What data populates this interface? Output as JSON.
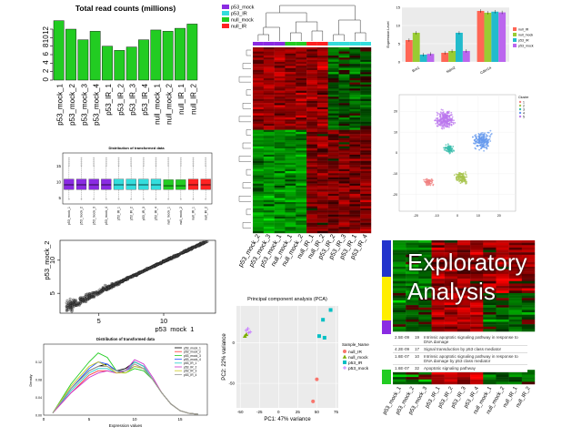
{
  "explore_title_line1": "Exploratory",
  "explore_title_line2": "Analysis",
  "colors": {
    "green": "#22cc22",
    "purple": "#8a2be2",
    "cyan": "#33dddd",
    "red": "#ff2222",
    "teal": "#22bbbb"
  },
  "chart_data": [
    {
      "id": "read_counts",
      "type": "bar",
      "title": "Total read counts (millions)",
      "categories": [
        "p53_mock_1",
        "p53_mock_2",
        "p53_mock_3",
        "p53_mock_4",
        "p53_IR_1",
        "p53_IR_2",
        "p53_IR_3",
        "p53_IR_4",
        "null_mock_1",
        "null_mock_2",
        "null_IR_1",
        "null_IR_2"
      ],
      "values": [
        14,
        12,
        9.5,
        11.5,
        8,
        7,
        7.8,
        9.5,
        11.8,
        11.5,
        12.2,
        13.2
      ],
      "ylim": [
        0,
        15
      ],
      "yticks": [
        0,
        2,
        4,
        6,
        8,
        10,
        12
      ],
      "color": "#22cc22"
    },
    {
      "id": "boxplot",
      "type": "box",
      "title": "Distribution of transformed data",
      "categories": [
        "p53_mock_1",
        "p53_mock_2",
        "p53_mock_3",
        "p53_mock_4",
        "p53_IR_1",
        "p53_IR_2",
        "p53_IR_3",
        "p53_IR_4",
        "null_mock_1",
        "null_mock_2",
        "null_IR_1",
        "null_IR_2"
      ],
      "median": [
        9,
        9,
        9,
        9,
        9,
        9,
        9,
        9,
        8.7,
        8.7,
        9,
        9
      ],
      "q1": [
        7.5,
        7.5,
        7.5,
        7.5,
        7.5,
        7.5,
        7.5,
        7.5,
        7.5,
        7.5,
        7.5,
        7.5
      ],
      "q3": [
        10.8,
        10.8,
        10.8,
        10.8,
        10.8,
        10.8,
        10.8,
        10.8,
        10.6,
        10.6,
        10.8,
        10.8
      ],
      "ylim": [
        3,
        19
      ],
      "yticks": [
        5,
        10,
        15
      ],
      "box_colors": [
        "#8a2be2",
        "#8a2be2",
        "#8a2be2",
        "#8a2be2",
        "#33dddd",
        "#33dddd",
        "#33dddd",
        "#33dddd",
        "#22cc22",
        "#22cc22",
        "#ff2222",
        "#ff2222"
      ]
    },
    {
      "id": "scatter_pair",
      "type": "scatter",
      "xlabel": "p53_mock_1",
      "ylabel": "p53_mock_2",
      "xticks": [
        5,
        10
      ],
      "yticks": [
        5,
        10
      ],
      "xlim": [
        2,
        14
      ],
      "ylim": [
        2,
        13
      ]
    },
    {
      "id": "density",
      "type": "line",
      "title": "Distribution of transformed data",
      "xlabel": "Expression values",
      "ylabel": "Density",
      "xlim": [
        0,
        18
      ],
      "ylim": [
        0,
        0.16
      ],
      "xticks": [
        0,
        5,
        10,
        15
      ],
      "yticks": [
        0.0,
        0.04,
        0.08,
        0.12
      ],
      "series": [
        {
          "name": "p53_mock_1",
          "color": "#000000",
          "x": [
            1,
            3,
            5,
            6,
            7,
            8,
            9,
            10,
            11,
            12,
            13,
            14,
            15,
            16,
            17
          ],
          "y": [
            0.005,
            0.06,
            0.1,
            0.11,
            0.115,
            0.1,
            0.105,
            0.12,
            0.11,
            0.08,
            0.05,
            0.025,
            0.01,
            0.004,
            0.002
          ]
        },
        {
          "name": "p53_mock_2",
          "color": "#ff3333",
          "x": [
            1,
            3,
            5,
            6,
            7,
            8,
            9,
            10,
            11,
            12,
            13,
            14,
            15,
            16,
            17
          ],
          "y": [
            0.005,
            0.05,
            0.09,
            0.1,
            0.1,
            0.095,
            0.1,
            0.115,
            0.105,
            0.08,
            0.05,
            0.025,
            0.01,
            0.004,
            0.002
          ]
        },
        {
          "name": "p53_mock_3",
          "color": "#22cc22",
          "x": [
            1,
            3,
            5,
            6,
            7,
            8,
            9,
            10,
            11,
            12,
            13,
            14,
            15,
            16,
            17
          ],
          "y": [
            0.005,
            0.07,
            0.12,
            0.14,
            0.13,
            0.1,
            0.095,
            0.105,
            0.1,
            0.08,
            0.05,
            0.025,
            0.01,
            0.004,
            0.002
          ]
        },
        {
          "name": "p53_mock_4",
          "color": "#2255ff",
          "x": [
            1,
            3,
            5,
            6,
            7,
            8,
            9,
            10,
            11,
            12,
            13,
            14,
            15,
            16,
            17
          ],
          "y": [
            0.005,
            0.06,
            0.105,
            0.12,
            0.115,
            0.1,
            0.1,
            0.11,
            0.105,
            0.08,
            0.05,
            0.025,
            0.01,
            0.004,
            0.002
          ]
        },
        {
          "name": "p53_IR_1",
          "color": "#22cccc",
          "x": [
            1,
            3,
            5,
            6,
            7,
            8,
            9,
            10,
            11,
            12,
            13,
            14,
            15,
            16,
            17
          ],
          "y": [
            0.005,
            0.055,
            0.095,
            0.105,
            0.105,
            0.095,
            0.1,
            0.12,
            0.11,
            0.08,
            0.05,
            0.025,
            0.01,
            0.004,
            0.002
          ]
        },
        {
          "name": "p53_IR_2",
          "color": "#cc33cc",
          "x": [
            1,
            3,
            5,
            6,
            7,
            8,
            9,
            10,
            11,
            12,
            13,
            14,
            15,
            16,
            17
          ],
          "y": [
            0.005,
            0.05,
            0.085,
            0.095,
            0.1,
            0.095,
            0.1,
            0.125,
            0.115,
            0.085,
            0.05,
            0.025,
            0.01,
            0.004,
            0.002
          ]
        },
        {
          "name": "p53_IR_3",
          "color": "#cccc22",
          "x": [
            1,
            3,
            5,
            6,
            7,
            8,
            9,
            10,
            11,
            12,
            13,
            14,
            15,
            16,
            17
          ],
          "y": [
            0.005,
            0.065,
            0.11,
            0.12,
            0.11,
            0.095,
            0.095,
            0.11,
            0.105,
            0.08,
            0.05,
            0.025,
            0.01,
            0.004,
            0.002
          ]
        },
        {
          "name": "p53_IR_4",
          "color": "#999999",
          "x": [
            1,
            3,
            5,
            6,
            7,
            8,
            9,
            10,
            11,
            12,
            13,
            14,
            15,
            16,
            17
          ],
          "y": [
            0.005,
            0.06,
            0.1,
            0.11,
            0.11,
            0.1,
            0.1,
            0.115,
            0.105,
            0.08,
            0.05,
            0.025,
            0.01,
            0.004,
            0.002
          ]
        }
      ]
    },
    {
      "id": "dendro_heatmap",
      "type": "heatmap",
      "legend": [
        "p53_mock",
        "p53_IR",
        "null_mock",
        "null_IR"
      ],
      "legend_colors": [
        "#8a2be2",
        "#33dddd",
        "#22cc22",
        "#ff2222"
      ],
      "columns": [
        "p53_mock_2",
        "p53_mock_3",
        "p53_mock_1",
        "null_mock_1",
        "null_mock_2",
        "null_IR_1",
        "null_IR_2",
        "p53_IR_2",
        "p53_IR_3",
        "p53_IR_1",
        "p53_IR_4"
      ],
      "column_groups": [
        0,
        0,
        0,
        2,
        2,
        3,
        3,
        1,
        1,
        1,
        1
      ]
    },
    {
      "id": "grouped_bar",
      "type": "bar",
      "groups": [
        "Bmi1",
        "Mdm2",
        "Cdkn1a"
      ],
      "series": [
        {
          "name": "null_IR",
          "color": "#ff6655",
          "values": [
            6,
            2.5,
            14
          ]
        },
        {
          "name": "null_mock",
          "color": "#99cc33",
          "values": [
            8,
            3,
            13.5
          ]
        },
        {
          "name": "p53_IR",
          "color": "#22bbcc",
          "values": [
            2,
            8,
            13.8
          ]
        },
        {
          "name": "p53_mock",
          "color": "#bb66ee",
          "values": [
            2.2,
            3,
            13.6
          ]
        }
      ],
      "ylim": [
        0,
        15
      ],
      "yticks": [
        0,
        5,
        10,
        15
      ],
      "ylabel": "Expression Level"
    },
    {
      "id": "tsne",
      "type": "scatter",
      "legend_title": "Cluster",
      "clusters": [
        "1",
        "2",
        "3",
        "4",
        "5"
      ],
      "cluster_colors": [
        "#f08080",
        "#a6c34a",
        "#33bbaa",
        "#6699ee",
        "#bb77ee"
      ],
      "xticks": [
        -20,
        -10,
        0,
        10,
        20
      ],
      "yticks": [
        -20,
        -10,
        0,
        10,
        20
      ]
    },
    {
      "id": "pca",
      "type": "scatter",
      "title": "Principal component analysis (PCA)",
      "xlabel": "PC1: 47% variance",
      "ylabel": "PC2: 22% variance",
      "legend_title": "Sample_Name",
      "legend": [
        "null_IR",
        "null_mock",
        "p53_IR",
        "p53_mock"
      ],
      "legend_colors": [
        "#f8766d",
        "#7cae00",
        "#00bfc4",
        "#c77cff"
      ],
      "points": [
        {
          "g": 0,
          "x": 50,
          "y": -45
        },
        {
          "g": 0,
          "x": 45,
          "y": -72
        },
        {
          "g": 1,
          "x": -42,
          "y": 10
        },
        {
          "g": 1,
          "x": -44,
          "y": 8
        },
        {
          "g": 2,
          "x": 58,
          "y": 28
        },
        {
          "g": 2,
          "x": 68,
          "y": 40
        },
        {
          "g": 2,
          "x": 53,
          "y": 8
        },
        {
          "g": 2,
          "x": 60,
          "y": 6
        },
        {
          "g": 3,
          "x": -40,
          "y": 17
        },
        {
          "g": 3,
          "x": -37,
          "y": 13
        },
        {
          "g": 3,
          "x": -39,
          "y": 12
        },
        {
          "g": 3,
          "x": -42,
          "y": 15
        }
      ],
      "xticks": [
        -50,
        -25,
        0,
        25,
        50,
        75
      ],
      "yticks": [
        -50,
        0
      ],
      "xlim": [
        -55,
        78
      ],
      "ylim": [
        -80,
        45
      ]
    },
    {
      "id": "pathway_table",
      "type": "table",
      "rows": [
        [
          "2.5E-09",
          "19",
          "Intrinsic apoptotic signaling pathway in response to DNA damage"
        ],
        [
          "4.2E-09",
          "17",
          "Signal transduction by p53 class mediator"
        ],
        [
          "1.6E-07",
          "10",
          "Intrinsic apoptotic signaling pathway in response to DNA damage by p53 class mediator"
        ],
        [
          "1.6E-07",
          "32",
          "Apoptotic signaling pathway"
        ]
      ]
    },
    {
      "id": "bottom_heatmap",
      "type": "heatmap",
      "columns": [
        "p53_mock_1",
        "p53_mock_2",
        "p53_mock_3",
        "p53_IR_1",
        "p53_IR_2",
        "p53_IR_3",
        "p53_IR_4",
        "null_mock_1",
        "null_mock_2",
        "null_IR_1",
        "null_IR_2"
      ]
    }
  ]
}
